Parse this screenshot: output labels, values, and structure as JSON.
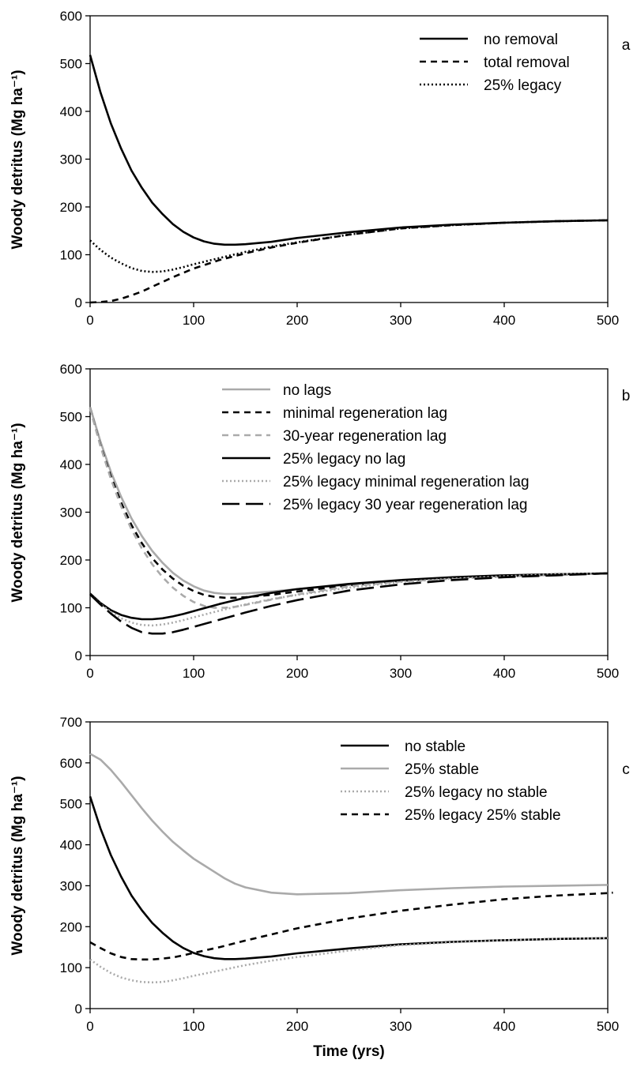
{
  "chart_data": [
    {
      "type": "line",
      "panel": "a",
      "ylabel": "Woody detritus (Mg ha⁻¹)",
      "xlim": [
        0,
        500
      ],
      "ylim": [
        0,
        600
      ],
      "xticks": [
        0,
        100,
        200,
        300,
        400,
        500
      ],
      "yticks": [
        0,
        100,
        200,
        300,
        400,
        500,
        600
      ],
      "grid": false,
      "legend_position": "top-right",
      "series": [
        {
          "name": "no removal",
          "color": "#000000",
          "dash": "solid",
          "x": [
            0,
            10,
            20,
            30,
            40,
            50,
            60,
            70,
            80,
            90,
            100,
            110,
            120,
            130,
            140,
            150,
            175,
            200,
            250,
            300,
            350,
            400,
            450,
            500
          ],
          "y": [
            518,
            440,
            375,
            322,
            276,
            240,
            209,
            185,
            164,
            148,
            136,
            128,
            123,
            121,
            121,
            122,
            127,
            135,
            147,
            157,
            163,
            167,
            170,
            172
          ]
        },
        {
          "name": "total removal",
          "color": "#000000",
          "dash": "dashed",
          "x": [
            0,
            10,
            20,
            30,
            40,
            50,
            60,
            70,
            80,
            90,
            100,
            125,
            150,
            175,
            200,
            250,
            300,
            350,
            400,
            450,
            500
          ],
          "y": [
            0,
            1,
            3,
            8,
            15,
            23,
            33,
            43,
            53,
            62,
            71,
            89,
            103,
            115,
            125,
            142,
            155,
            162,
            167,
            170,
            172
          ]
        },
        {
          "name": "25% legacy",
          "color": "#000000",
          "dash": "dotted",
          "x": [
            0,
            10,
            20,
            30,
            40,
            50,
            60,
            70,
            80,
            90,
            100,
            125,
            150,
            175,
            200,
            250,
            300,
            350,
            400,
            450,
            500
          ],
          "y": [
            130,
            110,
            94,
            82,
            72,
            66,
            64,
            65,
            69,
            74,
            80,
            93,
            106,
            117,
            126,
            142,
            155,
            162,
            167,
            170,
            172
          ]
        }
      ]
    },
    {
      "type": "line",
      "panel": "b",
      "ylabel": "Woody detritus (Mg ha⁻¹)",
      "xlim": [
        0,
        500
      ],
      "ylim": [
        0,
        600
      ],
      "xticks": [
        0,
        100,
        200,
        300,
        400,
        500
      ],
      "yticks": [
        0,
        100,
        200,
        300,
        400,
        500,
        600
      ],
      "grid": false,
      "legend_position": "top-center",
      "series": [
        {
          "name": "no lags",
          "color": "#aaaaaa",
          "dash": "solid",
          "x": [
            0,
            10,
            20,
            30,
            40,
            50,
            60,
            70,
            80,
            90,
            100,
            110,
            120,
            130,
            140,
            150,
            175,
            200,
            250,
            300,
            350,
            400,
            450,
            500
          ],
          "y": [
            520,
            448,
            385,
            332,
            287,
            250,
            219,
            194,
            173,
            157,
            145,
            136,
            131,
            129,
            129,
            130,
            134,
            139,
            148,
            157,
            163,
            167,
            170,
            172
          ]
        },
        {
          "name": "minimal regeneration lag",
          "color": "#000000",
          "dash": "dashed",
          "x": [
            0,
            10,
            20,
            30,
            40,
            50,
            60,
            70,
            80,
            90,
            100,
            110,
            120,
            130,
            140,
            150,
            175,
            200,
            250,
            300,
            350,
            400,
            450,
            500
          ],
          "y": [
            518,
            440,
            375,
            320,
            273,
            235,
            204,
            180,
            161,
            146,
            135,
            127,
            123,
            121,
            121,
            122,
            127,
            134,
            147,
            156,
            162,
            166,
            169,
            172
          ]
        },
        {
          "name": "30-year regeneration lag",
          "color": "#aaaaaa",
          "dash": "dashed",
          "x": [
            0,
            10,
            20,
            30,
            40,
            50,
            60,
            70,
            80,
            90,
            100,
            110,
            120,
            130,
            140,
            150,
            175,
            200,
            250,
            300,
            350,
            400,
            450,
            500
          ],
          "y": [
            518,
            438,
            370,
            312,
            264,
            224,
            191,
            164,
            142,
            125,
            112,
            104,
            100,
            100,
            102,
            106,
            117,
            128,
            145,
            155,
            161,
            166,
            169,
            172
          ]
        },
        {
          "name": "25% legacy no lag",
          "color": "#000000",
          "dash": "solid",
          "x": [
            0,
            10,
            20,
            30,
            40,
            50,
            60,
            70,
            80,
            90,
            100,
            125,
            150,
            175,
            200,
            250,
            300,
            350,
            400,
            450,
            500
          ],
          "y": [
            130,
            110,
            95,
            85,
            79,
            76,
            76,
            78,
            82,
            87,
            93,
            108,
            121,
            131,
            139,
            150,
            158,
            164,
            168,
            170,
            172
          ]
        },
        {
          "name": "25% legacy minimal regeneration lag",
          "color": "#aaaaaa",
          "dash": "dotted",
          "x": [
            0,
            10,
            20,
            30,
            40,
            50,
            60,
            70,
            80,
            90,
            100,
            125,
            150,
            175,
            200,
            250,
            300,
            350,
            400,
            450,
            500
          ],
          "y": [
            128,
            108,
            91,
            78,
            69,
            64,
            63,
            65,
            69,
            74,
            80,
            94,
            107,
            118,
            127,
            142,
            154,
            161,
            166,
            170,
            172
          ]
        },
        {
          "name": "25% legacy 30 year regeneration lag",
          "color": "#000000",
          "dash": "longdash",
          "x": [
            0,
            10,
            20,
            30,
            40,
            50,
            60,
            70,
            80,
            90,
            100,
            125,
            150,
            175,
            200,
            250,
            300,
            350,
            400,
            450,
            500
          ],
          "y": [
            128,
            107,
            88,
            71,
            58,
            49,
            46,
            46,
            49,
            54,
            60,
            75,
            90,
            104,
            116,
            136,
            149,
            158,
            164,
            168,
            172
          ]
        }
      ]
    },
    {
      "type": "line",
      "panel": "c",
      "ylabel": "Woody detritus (Mg ha⁻¹)",
      "xlabel": "Time (yrs)",
      "xlim": [
        0,
        500
      ],
      "ylim": [
        0,
        700
      ],
      "xticks": [
        0,
        100,
        200,
        300,
        400,
        500
      ],
      "yticks": [
        0,
        100,
        200,
        300,
        400,
        500,
        600,
        700
      ],
      "grid": false,
      "legend_position": "top-right",
      "series": [
        {
          "name": "no stable",
          "color": "#000000",
          "dash": "solid",
          "x": [
            0,
            10,
            20,
            30,
            40,
            50,
            60,
            70,
            80,
            90,
            100,
            110,
            120,
            130,
            140,
            150,
            175,
            200,
            250,
            300,
            350,
            400,
            450,
            500
          ],
          "y": [
            518,
            440,
            375,
            322,
            276,
            240,
            209,
            185,
            164,
            148,
            136,
            128,
            123,
            121,
            121,
            122,
            127,
            135,
            147,
            157,
            163,
            167,
            170,
            172
          ]
        },
        {
          "name": "25% stable",
          "color": "#aaaaaa",
          "dash": "solid",
          "x": [
            0,
            10,
            20,
            30,
            40,
            50,
            60,
            70,
            80,
            90,
            100,
            110,
            120,
            130,
            140,
            150,
            175,
            200,
            250,
            300,
            350,
            400,
            450,
            500
          ],
          "y": [
            622,
            608,
            583,
            553,
            521,
            489,
            459,
            432,
            407,
            386,
            366,
            350,
            334,
            318,
            305,
            296,
            283,
            279,
            282,
            289,
            294,
            298,
            300,
            302
          ]
        },
        {
          "name": "25% legacy no stable",
          "color": "#aaaaaa",
          "dash": "dotted",
          "x": [
            0,
            10,
            20,
            30,
            40,
            50,
            60,
            70,
            80,
            90,
            100,
            125,
            150,
            175,
            200,
            250,
            300,
            350,
            400,
            450,
            500
          ],
          "y": [
            120,
            102,
            87,
            76,
            69,
            65,
            64,
            65,
            69,
            74,
            80,
            93,
            106,
            117,
            126,
            142,
            155,
            162,
            167,
            170,
            172
          ]
        },
        {
          "name": "25% legacy 25% stable",
          "color": "#000000",
          "dash": "dashed",
          "x": [
            0,
            10,
            20,
            30,
            40,
            50,
            60,
            70,
            80,
            90,
            100,
            125,
            150,
            175,
            200,
            250,
            300,
            350,
            400,
            450,
            500,
            505
          ],
          "y": [
            162,
            148,
            135,
            126,
            121,
            120,
            120,
            122,
            125,
            130,
            136,
            150,
            166,
            181,
            196,
            220,
            239,
            254,
            267,
            276,
            282,
            283
          ]
        }
      ]
    }
  ]
}
